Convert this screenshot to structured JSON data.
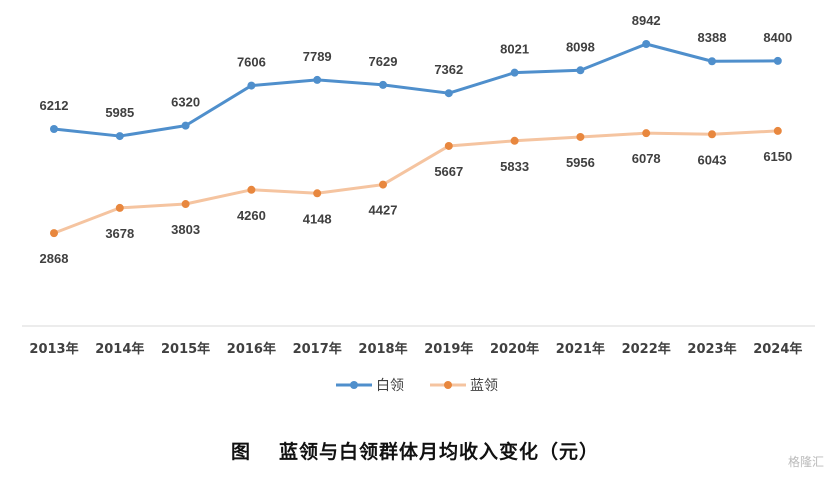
{
  "chart_data": {
    "type": "line",
    "title_prefix": "图",
    "title": "蓝领与白领群体月均收入变化（元）",
    "categories": [
      "2013年",
      "2014年",
      "2015年",
      "2016年",
      "2017年",
      "2018年",
      "2019年",
      "2020年",
      "2021年",
      "2022年",
      "2023年",
      "2024年"
    ],
    "series": [
      {
        "name": "白领",
        "color": "#4f8fcc",
        "marker_color": "#4f8fcc",
        "label_position": "above",
        "values": [
          6212,
          5985,
          6320,
          7606,
          7789,
          7629,
          7362,
          8021,
          8098,
          8942,
          8388,
          8400
        ]
      },
      {
        "name": "蓝领",
        "color": "#f5c4a0",
        "marker_color": "#e8873e",
        "label_position": "below",
        "values": [
          2868,
          3678,
          3803,
          4260,
          4148,
          4427,
          5667,
          5833,
          5956,
          6078,
          6043,
          6150
        ]
      }
    ],
    "xlabel": "",
    "ylabel": "",
    "ylim": [
      0,
      10000
    ],
    "grid": false,
    "legend": "bottom"
  },
  "watermark": "格隆汇"
}
